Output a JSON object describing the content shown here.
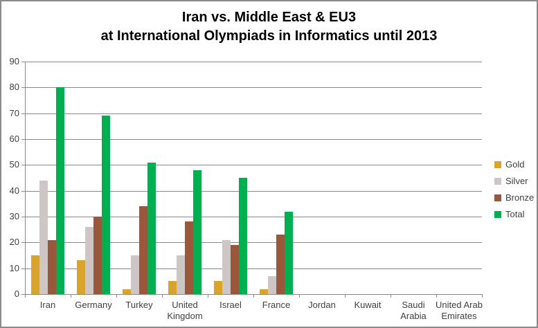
{
  "window": {
    "background": "#FFFFFF",
    "border_color": "#8A8A8A"
  },
  "title": {
    "line1": "Iran vs. Middle East & EU3",
    "line2": "at International Olympiads in Informatics until 2013"
  },
  "chart_data": {
    "type": "bar",
    "title": "Iran vs. Middle East & EU3 at International Olympiads in Informatics until 2013",
    "categories": [
      "Iran",
      "Germany",
      "Turkey",
      "United Kingdom",
      "Israel",
      "France",
      "Jordan",
      "Kuwait",
      "Saudi Arabia",
      "United Arab Emirates"
    ],
    "category_display": [
      "Iran",
      "Germany",
      "Turkey",
      "United\nKingdom",
      "Israel",
      "France",
      "Jordan",
      "Kuwait",
      "Saudi\nArabia",
      "United Arab\nEmirates"
    ],
    "series": [
      {
        "name": "Gold",
        "color": "#D9A42D",
        "values": [
          15,
          13,
          2,
          5,
          5,
          2,
          0,
          0,
          0,
          0
        ]
      },
      {
        "name": "Silver",
        "color": "#CDC6C4",
        "values": [
          44,
          26,
          15,
          15,
          21,
          7,
          0,
          0,
          0,
          0
        ]
      },
      {
        "name": "Bronze",
        "color": "#99583B",
        "values": [
          21,
          30,
          34,
          28,
          19,
          23,
          0,
          0,
          0,
          0
        ]
      },
      {
        "name": "Total",
        "color": "#00B050",
        "values": [
          80,
          69,
          51,
          48,
          45,
          32,
          0,
          0,
          0,
          0
        ]
      }
    ],
    "ylim": [
      0,
      90
    ],
    "ytick_step": 10,
    "yticks": [
      0,
      10,
      20,
      30,
      40,
      50,
      60,
      70,
      80,
      90
    ],
    "grid": true,
    "legend_position": "right",
    "axis_color": "#898989",
    "label_color": "#3F3F3F",
    "xlabel": "",
    "ylabel": ""
  }
}
